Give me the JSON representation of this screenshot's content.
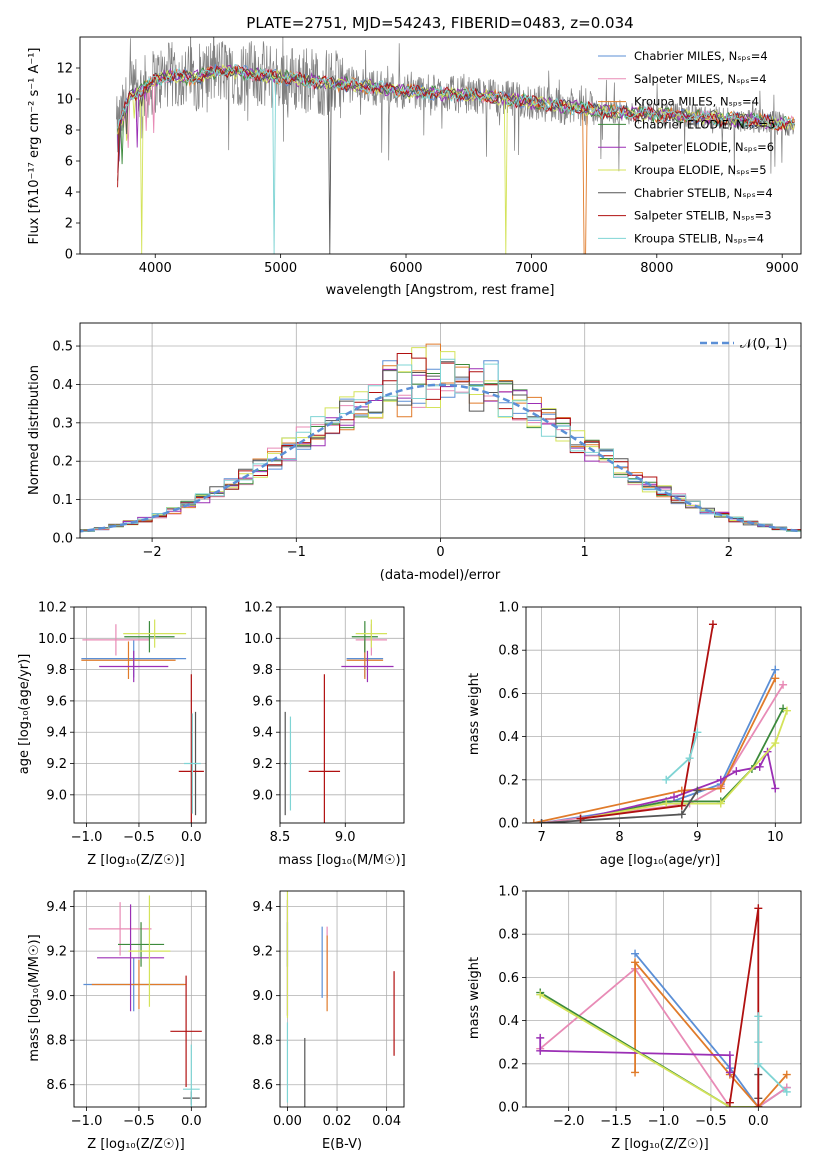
{
  "figure": {
    "title": "PLATE=2751, MJD=54243, FIBERID=0483, z=0.034"
  },
  "panels": {
    "spectrum": {
      "xlabel": "wavelength [Angstrom, rest frame]",
      "ylabel": "Flux [fλ10⁻¹⁷ erg cm⁻² s⁻¹ A⁻¹]"
    },
    "residual": {
      "xlabel": "(data-model)/error",
      "ylabel": "Normed distribution",
      "normal_label": "𝒩(0, 1)"
    },
    "age_vs_Z": {
      "xlabel": "Z [log₁₀(Z/Z☉)]",
      "ylabel": "age  [log₁₀(age/yr)]"
    },
    "age_vs_mass": {
      "xlabel": "mass [log₁₀(M/M☉)]",
      "ylabel": ""
    },
    "weight_vs_age": {
      "xlabel": "age  [log₁₀(age/yr)]",
      "ylabel": "mass weight"
    },
    "mass_vs_Z": {
      "xlabel": "Z [log₁₀(Z/Z☉)]",
      "ylabel": "mass [log₁₀(M/M☉)]"
    },
    "mass_vs_ebv": {
      "xlabel": "E(B-V)",
      "ylabel": ""
    },
    "weight_vs_Z": {
      "xlabel": "Z [log₁₀(Z/Z☉)]",
      "ylabel": "mass weight"
    }
  },
  "models": [
    {
      "name": "Chabrier MILES, Nₛₚₛ=4",
      "color": "#5b8fd6"
    },
    {
      "name": "Salpeter MILES, Nₛₚₛ=4",
      "color": "#e88bb6"
    },
    {
      "name": "Kroupa MILES, Nₛₚₛ=4",
      "color": "#e07b2a"
    },
    {
      "name": "Chabrier ELODIE, Nₛₚₛ=5",
      "color": "#3c8a3c"
    },
    {
      "name": "Salpeter ELODIE, Nₛₚₛ=6",
      "color": "#9b2fb5"
    },
    {
      "name": "Kroupa ELODIE, Nₛₚₛ=5",
      "color": "#d4e35a"
    },
    {
      "name": "Chabrier STELIB, Nₛₚₛ=4",
      "color": "#555555"
    },
    {
      "name": "Salpeter STELIB, Nₛₚₛ=3",
      "color": "#b01010"
    },
    {
      "name": "Kroupa STELIB, Nₛₚₛ=4",
      "color": "#7fd4d4"
    }
  ],
  "chart_data": [
    {
      "id": "spectrum",
      "type": "line",
      "xlim": [
        3400,
        9150
      ],
      "ylim": [
        0,
        14
      ],
      "xticks": [
        4000,
        5000,
        6000,
        7000,
        8000,
        9000
      ],
      "yticks": [
        0,
        2,
        4,
        6,
        8,
        10,
        12
      ],
      "continuum": {
        "x": [
          3700,
          3800,
          3900,
          4000,
          4100,
          4200,
          4300,
          4400,
          4500,
          4600,
          4700,
          4800,
          4900,
          5000,
          5200,
          5400,
          5600,
          5800,
          6000,
          6200,
          6400,
          6600,
          6800,
          7000,
          7200,
          7400,
          7600,
          7800,
          8000,
          8200,
          8400,
          8600,
          8800,
          9000
        ],
        "y": [
          8.0,
          10.2,
          10.6,
          11.2,
          11.5,
          11.5,
          11.3,
          11.6,
          11.8,
          11.8,
          11.7,
          11.6,
          11.5,
          11.4,
          11.2,
          11.0,
          10.9,
          10.7,
          10.5,
          10.4,
          10.3,
          10.2,
          10.0,
          9.8,
          9.6,
          9.4,
          9.2,
          9.1,
          9.0,
          8.9,
          8.8,
          8.7,
          8.6,
          8.4
        ]
      },
      "dips": [
        {
          "model": 5,
          "x": 3890,
          "y": 0
        },
        {
          "model": 8,
          "x": 4950,
          "y": 0
        },
        {
          "model": 6,
          "x": 5395,
          "y": 0
        },
        {
          "model": 5,
          "x": 6800,
          "y": 0
        },
        {
          "model": 2,
          "x": 7425,
          "y": 0
        }
      ]
    },
    {
      "id": "residual",
      "type": "line",
      "xlim": [
        -2.5,
        2.5
      ],
      "ylim": [
        0,
        0.56
      ],
      "xticks": [
        -2,
        -1,
        0,
        1,
        2
      ],
      "yticks": [
        0.0,
        0.1,
        0.2,
        0.3,
        0.4,
        0.5
      ],
      "normal": {
        "mu": 0,
        "sigma": 1
      }
    },
    {
      "id": "age_vs_Z",
      "type": "scatter",
      "xlim": [
        -1.12,
        0.14
      ],
      "ylim": [
        8.82,
        10.2
      ],
      "xticks": [
        -1.0,
        -0.5,
        0.0
      ],
      "yticks": [
        9.0,
        9.2,
        9.4,
        9.6,
        9.8,
        10.0,
        10.2
      ],
      "points": [
        {
          "model": 0,
          "x": -0.55,
          "y": 9.87,
          "xerr": 0.5,
          "yerr": 0.12
        },
        {
          "model": 1,
          "x": -0.72,
          "y": 9.99,
          "xerr": 0.32,
          "yerr": 0.1
        },
        {
          "model": 2,
          "x": -0.6,
          "y": 9.86,
          "xerr": 0.45,
          "yerr": 0.12
        },
        {
          "model": 3,
          "x": -0.4,
          "y": 10.01,
          "xerr": 0.24,
          "yerr": 0.1
        },
        {
          "model": 4,
          "x": -0.55,
          "y": 9.82,
          "xerr": 0.33,
          "yerr": 0.1
        },
        {
          "model": 5,
          "x": -0.35,
          "y": 10.03,
          "xerr": 0.3,
          "yerr": 0.09
        },
        {
          "model": 6,
          "x": 0.04,
          "y": 9.2,
          "xerr": 0.01,
          "yerr": 0.33
        },
        {
          "model": 7,
          "x": 0.0,
          "y": 9.15,
          "xerr": 0.12,
          "yerr": 0.62
        },
        {
          "model": 8,
          "x": 0.01,
          "y": 9.2,
          "xerr": 0.08,
          "yerr": 0.32
        }
      ]
    },
    {
      "id": "age_vs_mass",
      "type": "scatter",
      "xlim": [
        8.5,
        9.45
      ],
      "ylim": [
        8.82,
        10.2
      ],
      "xticks": [
        8.5,
        9.0
      ],
      "yticks": [
        9.0,
        9.2,
        9.4,
        9.6,
        9.8,
        10.0,
        10.2
      ],
      "points": [
        {
          "model": 0,
          "x": 9.15,
          "y": 9.87,
          "xerr": 0.14,
          "yerr": 0.12
        },
        {
          "model": 1,
          "x": 9.2,
          "y": 9.99,
          "xerr": 0.12,
          "yerr": 0.1
        },
        {
          "model": 2,
          "x": 9.15,
          "y": 9.86,
          "xerr": 0.14,
          "yerr": 0.12
        },
        {
          "model": 3,
          "x": 9.15,
          "y": 10.01,
          "xerr": 0.1,
          "yerr": 0.1
        },
        {
          "model": 4,
          "x": 9.17,
          "y": 9.82,
          "xerr": 0.2,
          "yerr": 0.1
        },
        {
          "model": 5,
          "x": 9.2,
          "y": 10.03,
          "xerr": 0.12,
          "yerr": 0.09
        },
        {
          "model": 6,
          "x": 8.54,
          "y": 9.2,
          "xerr": 0.01,
          "yerr": 0.33
        },
        {
          "model": 7,
          "x": 8.84,
          "y": 9.15,
          "xerr": 0.12,
          "yerr": 0.62
        },
        {
          "model": 8,
          "x": 8.58,
          "y": 9.2,
          "xerr": 0.01,
          "yerr": 0.3
        }
      ]
    },
    {
      "id": "weight_vs_age",
      "type": "line",
      "xlim": [
        6.8,
        10.33
      ],
      "ylim": [
        0,
        1.0
      ],
      "xticks": [
        7,
        8,
        9,
        10
      ],
      "yticks": [
        0.0,
        0.2,
        0.4,
        0.6,
        0.8,
        1.0
      ],
      "series": [
        {
          "model": 0,
          "x": [
            7.0,
            8.6,
            9.3,
            10.0
          ],
          "y": [
            0.0,
            0.09,
            0.18,
            0.71
          ]
        },
        {
          "model": 1,
          "x": [
            7.0,
            8.9,
            9.3,
            10.1
          ],
          "y": [
            0.0,
            0.09,
            0.17,
            0.64
          ]
        },
        {
          "model": 2,
          "x": [
            6.9,
            8.8,
            9.3,
            10.0
          ],
          "y": [
            0.0,
            0.15,
            0.16,
            0.67
          ]
        },
        {
          "model": 3,
          "x": [
            7.5,
            8.6,
            9.3,
            9.7,
            10.1
          ],
          "y": [
            0.02,
            0.1,
            0.1,
            0.25,
            0.53
          ]
        },
        {
          "model": 4,
          "x": [
            7.5,
            8.7,
            9.3,
            9.5,
            9.8,
            9.9,
            10.0
          ],
          "y": [
            0.02,
            0.12,
            0.2,
            0.24,
            0.26,
            0.33,
            0.16
          ]
        },
        {
          "model": 5,
          "x": [
            7.5,
            8.6,
            9.3,
            10.0,
            10.15
          ],
          "y": [
            0.02,
            0.09,
            0.09,
            0.37,
            0.52
          ]
        },
        {
          "model": 6,
          "x": [
            7.0,
            8.8,
            9.0
          ],
          "y": [
            0.0,
            0.04,
            0.15
          ]
        },
        {
          "model": 7,
          "x": [
            7.5,
            8.8,
            9.2
          ],
          "y": [
            0.02,
            0.08,
            0.92
          ]
        },
        {
          "model": 8,
          "x": [
            8.6,
            8.9,
            9.0
          ],
          "y": [
            0.2,
            0.3,
            0.42
          ]
        }
      ]
    },
    {
      "id": "mass_vs_Z",
      "type": "scatter",
      "xlim": [
        -1.12,
        0.14
      ],
      "ylim": [
        8.5,
        9.47
      ],
      "xticks": [
        -1.0,
        -0.5,
        0.0
      ],
      "yticks": [
        8.6,
        8.8,
        9.0,
        9.2,
        9.4
      ],
      "points": [
        {
          "model": 0,
          "x": -0.55,
          "y": 9.05,
          "xerr": 0.48,
          "yerr": 0.12
        },
        {
          "model": 1,
          "x": -0.68,
          "y": 9.3,
          "xerr": 0.3,
          "yerr": 0.12
        },
        {
          "model": 2,
          "x": -0.5,
          "y": 9.05,
          "xerr": 0.45,
          "yerr": 0.11
        },
        {
          "model": 3,
          "x": -0.48,
          "y": 9.23,
          "xerr": 0.22,
          "yerr": 0.1
        },
        {
          "model": 4,
          "x": -0.58,
          "y": 9.17,
          "xerr": 0.32,
          "yerr": 0.24
        },
        {
          "model": 5,
          "x": -0.4,
          "y": 9.2,
          "xerr": 0.2,
          "yerr": 0.25
        },
        {
          "model": 6,
          "x": 0.0,
          "y": 8.54,
          "xerr": 0.08,
          "yerr": 0.03
        },
        {
          "model": 7,
          "x": -0.05,
          "y": 8.84,
          "xerr": 0.15,
          "yerr": 0.25
        },
        {
          "model": 8,
          "x": 0.0,
          "y": 8.58,
          "xerr": 0.08,
          "yerr": 0.2
        }
      ]
    },
    {
      "id": "mass_vs_ebv",
      "type": "scatter",
      "xlim": [
        -0.003,
        0.047
      ],
      "ylim": [
        8.5,
        9.47
      ],
      "xticks": [
        0.0,
        0.02,
        0.04
      ],
      "yticks": [
        8.6,
        8.8,
        9.0,
        9.2,
        9.4
      ],
      "points": [
        {
          "model": 0,
          "x": 0.014,
          "y": 9.15,
          "xerr": 0,
          "yerr": 0.16
        },
        {
          "model": 1,
          "x": 0.016,
          "y": 9.15,
          "xerr": 0,
          "yerr": 0.16
        },
        {
          "model": 2,
          "x": 0.016,
          "y": 9.1,
          "xerr": 0,
          "yerr": 0.17
        },
        {
          "model": 3,
          "x": 0.0,
          "y": 9.23,
          "xerr": 0,
          "yerr": 0.1
        },
        {
          "model": 4,
          "x": 0.0,
          "y": 9.17,
          "xerr": 0,
          "yerr": 0.26
        },
        {
          "model": 5,
          "x": 0.0,
          "y": 9.2,
          "xerr": 0,
          "yerr": 0.3
        },
        {
          "model": 6,
          "x": 0.007,
          "y": 8.6,
          "xerr": 0,
          "yerr": 0.21
        },
        {
          "model": 7,
          "x": 0.043,
          "y": 8.92,
          "xerr": 0,
          "yerr": 0.19
        },
        {
          "model": 8,
          "x": 0.0,
          "y": 8.7,
          "xerr": 0,
          "yerr": 0.18
        }
      ]
    },
    {
      "id": "weight_vs_Z",
      "type": "line",
      "xlim": [
        -2.45,
        0.45
      ],
      "ylim": [
        0,
        1.0
      ],
      "xticks": [
        -2.0,
        -1.5,
        -1.0,
        -0.5,
        0.0
      ],
      "yticks": [
        0.0,
        0.2,
        0.4,
        0.6,
        0.8,
        1.0
      ],
      "series": [
        {
          "model": 0,
          "x": [
            -1.3,
            -0.3,
            0.0,
            0.3
          ],
          "y": [
            0.71,
            0.18,
            0.0,
            0.09
          ]
        },
        {
          "model": 1,
          "x": [
            -2.3,
            -1.3,
            -0.3,
            0.0,
            0.3
          ],
          "y": [
            0.27,
            0.64,
            0.0,
            0.0,
            0.09
          ]
        },
        {
          "model": 2,
          "x": [
            -1.3,
            -1.3,
            -0.3,
            0.0,
            0.3
          ],
          "y": [
            0.16,
            0.67,
            0.15,
            0.0,
            0.15
          ]
        },
        {
          "model": 3,
          "x": [
            -2.3,
            -0.3,
            0.0
          ],
          "y": [
            0.53,
            0.0,
            0.0
          ]
        },
        {
          "model": 4,
          "x": [
            -2.3,
            -2.3,
            -0.3,
            -0.3
          ],
          "y": [
            0.32,
            0.26,
            0.24,
            0.16
          ]
        },
        {
          "model": 5,
          "x": [
            -2.3,
            -0.3,
            0.0
          ],
          "y": [
            0.52,
            0.0,
            0.0
          ]
        },
        {
          "model": 6,
          "x": [
            0.0,
            0.0
          ],
          "y": [
            0.04,
            0.15
          ]
        },
        {
          "model": 7,
          "x": [
            -0.3,
            0.0,
            0.0
          ],
          "y": [
            0.02,
            0.92,
            0.0
          ]
        },
        {
          "model": 8,
          "x": [
            0.0,
            0.0,
            0.0,
            0.3
          ],
          "y": [
            0.42,
            0.3,
            0.2,
            0.07
          ]
        }
      ]
    }
  ]
}
